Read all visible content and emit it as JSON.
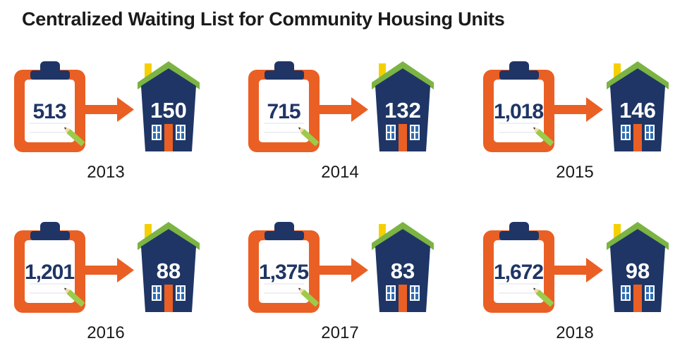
{
  "title": "Centralized Waiting List for Community Housing Units",
  "colors": {
    "clipboard": "#ea5f24",
    "clip": "#1f3565",
    "paper": "#ffffff",
    "number": "#1f3565",
    "arrow": "#ea5f24",
    "house_body": "#1f3565",
    "roof": "#7bb443",
    "chimney": "#f5d000",
    "door": "#ea5f24",
    "window": "#2e6db3",
    "pencil": "#9ccb49",
    "year_text": "#1a1a1a"
  },
  "chart_data": {
    "type": "table",
    "columns": [
      "year",
      "waiting_list",
      "housing_units"
    ],
    "rows": [
      {
        "year": "2013",
        "waiting_list": "513",
        "housing_units": "150"
      },
      {
        "year": "2014",
        "waiting_list": "715",
        "housing_units": "132"
      },
      {
        "year": "2015",
        "waiting_list": "1,018",
        "housing_units": "146"
      },
      {
        "year": "2016",
        "waiting_list": "1,201",
        "housing_units": "88"
      },
      {
        "year": "2017",
        "waiting_list": "1,375",
        "housing_units": "83"
      },
      {
        "year": "2018",
        "waiting_list": "1,672",
        "housing_units": "98"
      }
    ]
  }
}
